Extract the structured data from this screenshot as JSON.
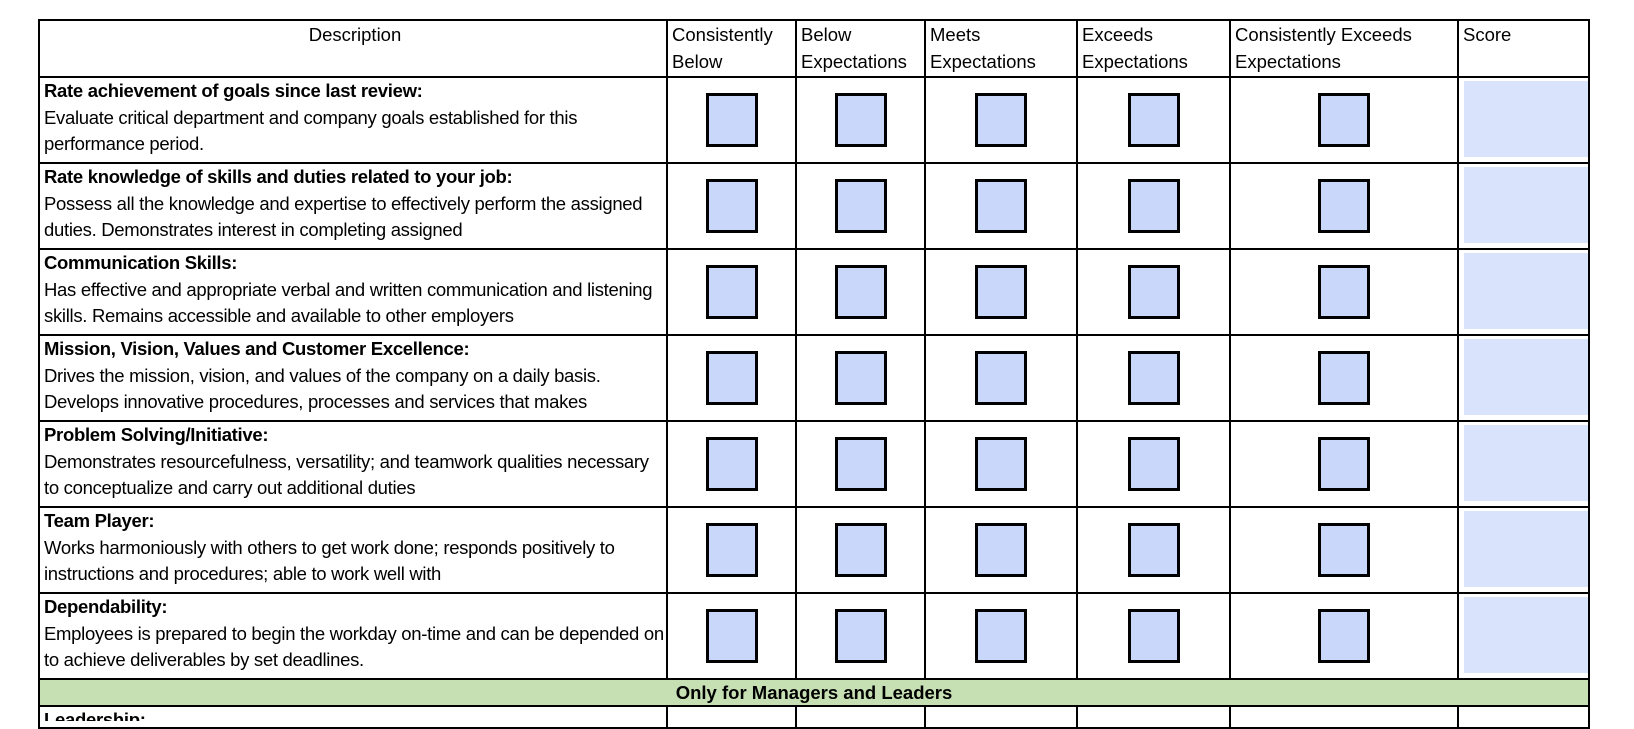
{
  "headers": [
    "Description",
    "Consistently Below",
    "Below Expectations",
    "Meets Expectations",
    "Exceeds Expectations",
    "Consistently Exceeds Expectations",
    "Score"
  ],
  "rows": [
    {
      "title": "Rate achievement of goals since last review:",
      "text": "Evaluate critical department and company goals established for this performance period."
    },
    {
      "title": "Rate knowledge of skills and duties related to your job:",
      "text": "Possess all the knowledge and expertise to effectively perform the assigned duties. Demonstrates interest in completing assigned"
    },
    {
      "title": "Communication Skills:",
      "text": "Has effective and appropriate verbal and written communication and listening skills. Remains accessible and available to other employers"
    },
    {
      "title": "Mission, Vision, Values and Customer Excellence:",
      "text": "Drives the mission, vision, and values of the company on a daily basis. Develops innovative procedures, processes and services that makes"
    },
    {
      "title": "Problem Solving/Initiative:",
      "text": "Demonstrates resourcefulness, versatility; and teamwork qualities necessary to conceptualize and carry out additional duties"
    },
    {
      "title": "Team Player:",
      "text": "Works harmoniously with others to get work done; responds positively to instructions and procedures; able to work well with"
    },
    {
      "title": "Dependability:",
      "text": "Employees is prepared to begin the workday on-time and can be depended on to achieve deliverables by set deadlines."
    }
  ],
  "section_label": "Only for Managers and Leaders",
  "partial_row_title": "Leadership:",
  "colors": {
    "checkbox_fill": "#c9d7fb",
    "score_fill": "#dae3fc",
    "section_fill": "#c6e0b4"
  }
}
